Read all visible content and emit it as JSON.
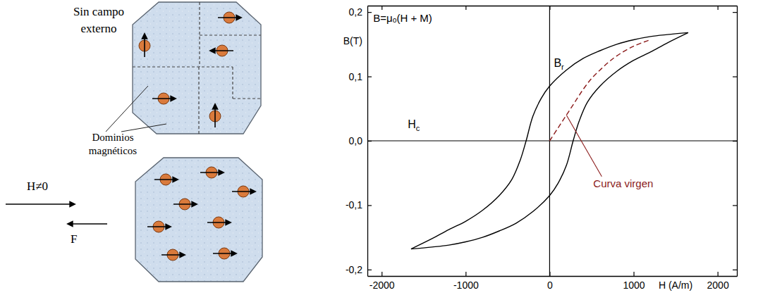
{
  "chart_data": {
    "type": "line",
    "xlabel": "H (A/m)",
    "ylabel": "B(T)",
    "xlim": [
      -2170,
      2230
    ],
    "ylim": [
      -0.21,
      0.21
    ],
    "xticks": [
      -2000,
      -1000,
      0,
      1000,
      2000
    ],
    "yticks": [
      {
        "value": -0.2,
        "label": "-0,2"
      },
      {
        "value": -0.1,
        "label": "-0,1"
      },
      {
        "value": 0,
        "label": "0,0"
      },
      {
        "value": 0.1,
        "label": "0,1"
      },
      {
        "value": 0.2,
        "label": "0,2"
      }
    ],
    "grid": false,
    "series": [
      {
        "x": [
          1650,
          1400,
          1200,
          1000,
          800,
          600,
          400,
          200,
          0,
          -100,
          -200,
          -280,
          -350,
          -450,
          -600,
          -800,
          -1000,
          -1200,
          -1400,
          -1650
        ],
        "values": [
          0.168,
          0.165,
          0.162,
          0.157,
          0.15,
          0.14,
          0.128,
          0.11,
          0.085,
          0.066,
          0.038,
          0,
          -0.03,
          -0.06,
          -0.085,
          -0.108,
          -0.125,
          -0.138,
          -0.152,
          -0.168
        ],
        "color": "#000000",
        "line_style": "solid"
      },
      {
        "x": [
          -1650,
          -1400,
          -1200,
          -1000,
          -800,
          -600,
          -400,
          -200,
          0,
          100,
          200,
          280,
          350,
          450,
          600,
          800,
          1000,
          1200,
          1400,
          1650
        ],
        "values": [
          -0.168,
          -0.165,
          -0.162,
          -0.157,
          -0.15,
          -0.14,
          -0.128,
          -0.11,
          -0.085,
          -0.066,
          -0.038,
          0,
          0.03,
          0.06,
          0.085,
          0.108,
          0.125,
          0.138,
          0.152,
          0.168
        ],
        "color": "#000000",
        "line_style": "solid"
      },
      {
        "x": [
          0,
          100,
          200,
          300,
          400,
          500,
          600,
          700,
          800,
          1000,
          1200
        ],
        "values": [
          0,
          0.02,
          0.04,
          0.06,
          0.08,
          0.097,
          0.11,
          0.122,
          0.132,
          0.147,
          0.157
        ],
        "color": "#8b1a1a",
        "line_style": "dashed"
      }
    ],
    "annotations": [
      {
        "text": "B=μₒ(H + M)",
        "x": -2100,
        "y": 0.185
      },
      {
        "text": "B",
        "sub": "r",
        "x": 50,
        "y": 0.115
      },
      {
        "text": "H",
        "sub": "c",
        "x": -1690,
        "y": 0.02
      },
      {
        "text": "Curva virgen",
        "x": 520,
        "y": -0.072,
        "color": "#8b1a1a"
      }
    ]
  },
  "diagram": {
    "no_field": [
      "Sin campo",
      "externo"
    ],
    "domains": [
      "Dominios",
      "magnéticos"
    ],
    "field": "H≠0",
    "force": "F"
  }
}
